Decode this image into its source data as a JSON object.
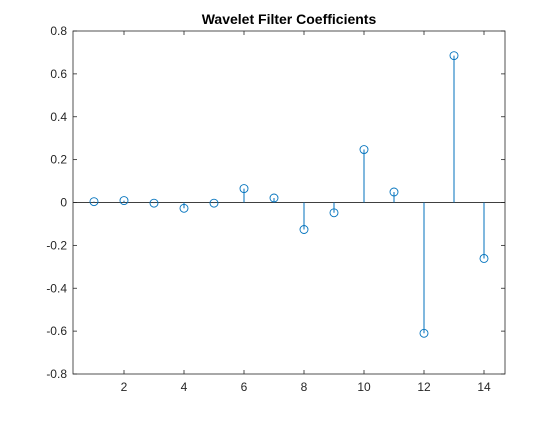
{
  "chart_data": {
    "type": "stem",
    "title": "Wavelet Filter Coefficients",
    "xlabel": "",
    "ylabel": "",
    "x": [
      1,
      2,
      3,
      4,
      5,
      6,
      7,
      8,
      9,
      10,
      11,
      12,
      13,
      14
    ],
    "values": [
      0.004,
      0.009,
      -0.003,
      -0.027,
      -0.003,
      0.065,
      0.021,
      -0.126,
      -0.048,
      0.247,
      0.049,
      -0.61,
      0.685,
      -0.261
    ],
    "xlim": [
      0.3,
      14.7
    ],
    "ylim": [
      -0.8,
      0.8
    ],
    "xticks": [
      2,
      4,
      6,
      8,
      10,
      12,
      14
    ],
    "yticks": [
      -0.8,
      -0.6,
      -0.4,
      -0.2,
      0,
      0.2,
      0.4,
      0.6,
      0.8
    ],
    "grid": false,
    "baseline": 0,
    "colors": {
      "series": "#0072BD",
      "axes": "#262626",
      "baseline": "#000000"
    }
  }
}
